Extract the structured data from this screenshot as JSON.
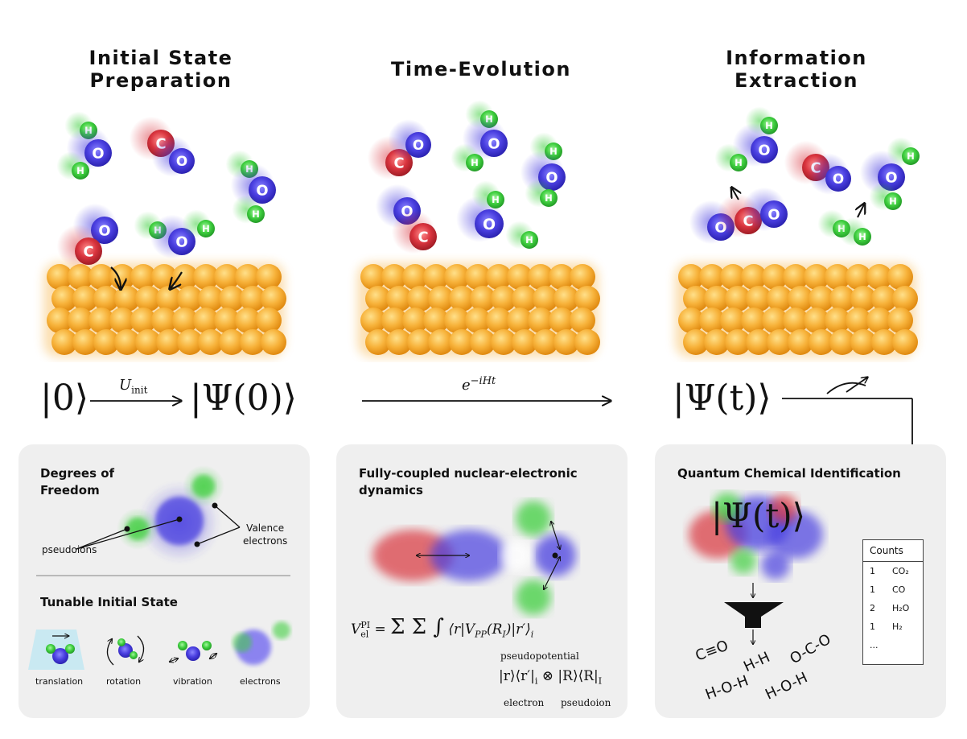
{
  "columns": [
    {
      "title_line1": "Initial State",
      "title_line2": "Preparation"
    },
    {
      "title_line1": "Time-Evolution",
      "title_line2": ""
    },
    {
      "title_line1": "Information",
      "title_line2": "Extraction"
    }
  ],
  "equations": {
    "ket0": "|0⟩",
    "uinit": "U",
    "uinit_sub": "init",
    "psi0": "|Ψ(0)⟩",
    "evolution": "e",
    "evolution_sup": "−iHt",
    "psit": "|Ψ(t)⟩"
  },
  "molecule_labels": {
    "H": "H",
    "O": "O",
    "C": "C"
  },
  "panel_left": {
    "dof_title_line1": "Degrees of",
    "dof_title_line2": "Freedom",
    "pseudoions": "pseudoions",
    "valence_line1": "Valence",
    "valence_line2": "electrons",
    "tunable_title": "Tunable Initial State",
    "modes": [
      "translation",
      "rotation",
      "vibration",
      "electrons"
    ]
  },
  "panel_middle": {
    "title_line1": "Fully-coupled nuclear-electronic",
    "title_line2": "dynamics",
    "brace_top": "pseudopotential",
    "brace_electron": "electron",
    "brace_pseudoion": "pseudoion"
  },
  "panel_right": {
    "title": "Quantum Chemical Identification",
    "wavefn": "|Ψ(t)⟩",
    "products": [
      "C≡O",
      "H-H",
      "O-C-O",
      "H-O-H",
      "H-O-H"
    ],
    "counts_header": "Counts",
    "counts_rows": [
      {
        "n": "1",
        "species": "CO₂"
      },
      {
        "n": "1",
        "species": "CO"
      },
      {
        "n": "2",
        "species": "H₂O"
      },
      {
        "n": "1",
        "species": "H₂"
      },
      {
        "n": "...",
        "species": ""
      }
    ]
  },
  "colors": {
    "oxygen": "#4a3fe0",
    "carbon": "#d9343e",
    "hydrogen": "#3fcf3f",
    "surface": "#f5a623",
    "panel": "#efefef"
  }
}
